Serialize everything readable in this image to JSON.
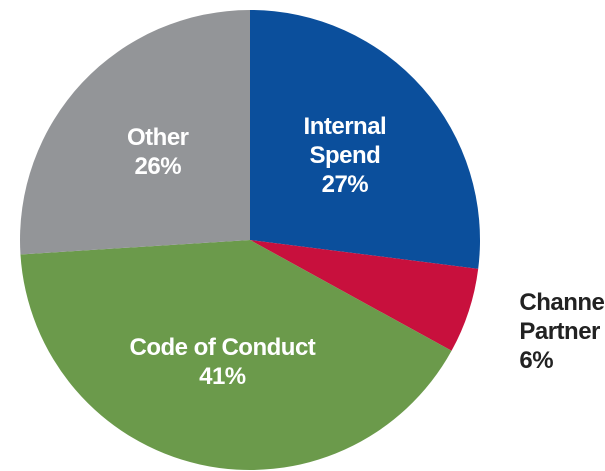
{
  "chart_data": {
    "type": "pie",
    "categories": [
      "Internal Spend",
      "Channel Partner",
      "Code of Conduct",
      "Other"
    ],
    "values": [
      27,
      6,
      41,
      26
    ],
    "value_labels": [
      "27%",
      "6%",
      "41%",
      "26%"
    ],
    "colors": [
      "#0b4f9c",
      "#c8103d",
      "#6b9a4b",
      "#939598"
    ]
  }
}
